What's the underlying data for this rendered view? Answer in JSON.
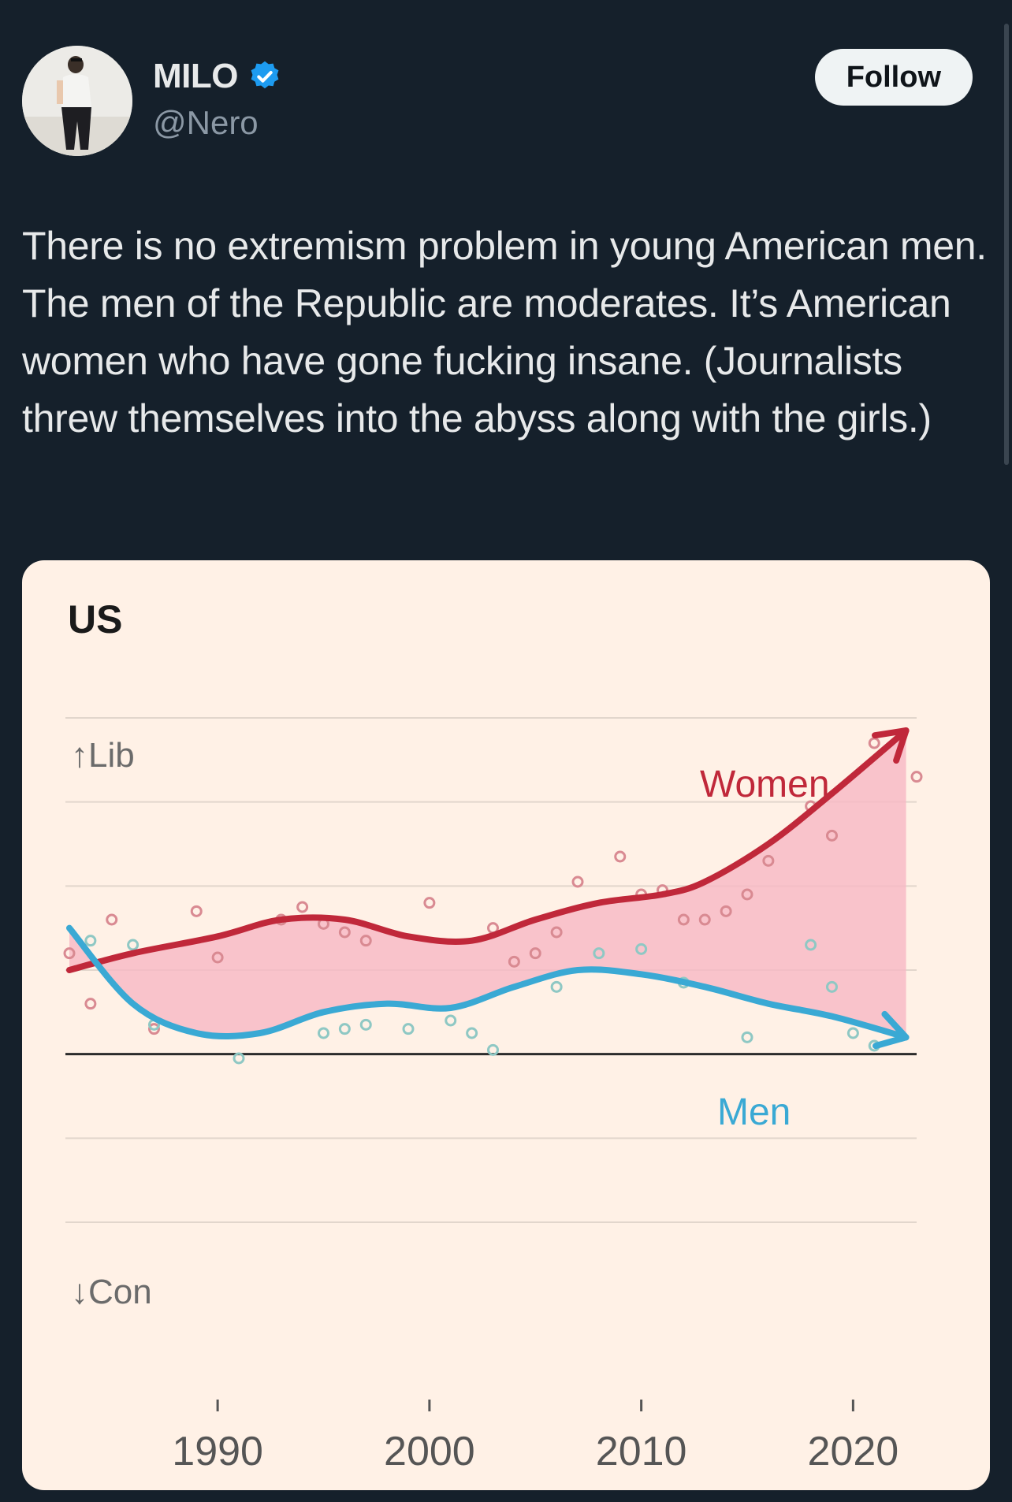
{
  "user": {
    "display_name": "MILO",
    "handle": "@Nero",
    "follow_label": "Follow",
    "verified": true,
    "accent": "#1d9bf0"
  },
  "tweet": {
    "text": "There is no extremism problem in young American men. The men of the Republic are moderates. It’s American women who have gone fucking insane. (Journalists threw themselves into the abyss along with the girls.)"
  },
  "chart_data": {
    "type": "line",
    "title": "US",
    "y_top_label": "↑Lib",
    "y_bottom_label": "↓Con",
    "xlim": [
      1983,
      2023
    ],
    "ylim": [
      -2,
      4
    ],
    "x_ticks": [
      1990,
      2000,
      2010,
      2020
    ],
    "x_tick_labels": [
      "1990",
      "2000",
      "2010",
      "2020"
    ],
    "grid": true,
    "zero_line": 0,
    "series": [
      {
        "name": "Women",
        "color": "#c0283a",
        "x": [
          1983,
          1986,
          1990,
          1993,
          1996,
          1999,
          2002,
          2005,
          2008,
          2011,
          2013,
          2016,
          2019,
          2022.5
        ],
        "y": [
          1.0,
          1.2,
          1.4,
          1.6,
          1.6,
          1.4,
          1.35,
          1.6,
          1.8,
          1.9,
          2.05,
          2.5,
          3.1,
          3.85
        ]
      },
      {
        "name": "Men",
        "color": "#3aa9d4",
        "x": [
          1983,
          1986,
          1989,
          1992,
          1995,
          1998,
          2001,
          2004,
          2007,
          2010,
          2013,
          2016,
          2019,
          2022.5
        ],
        "y": [
          1.5,
          0.6,
          0.25,
          0.25,
          0.5,
          0.6,
          0.55,
          0.8,
          1.0,
          0.95,
          0.8,
          0.6,
          0.45,
          0.2
        ]
      }
    ],
    "scatter_women": [
      [
        1983,
        1.2
      ],
      [
        1984,
        0.6
      ],
      [
        1985,
        1.6
      ],
      [
        1987,
        0.3
      ],
      [
        1989,
        1.7
      ],
      [
        1990,
        1.15
      ],
      [
        1993,
        1.6
      ],
      [
        1994,
        1.75
      ],
      [
        1995,
        1.55
      ],
      [
        1996,
        1.45
      ],
      [
        1997,
        1.35
      ],
      [
        2000,
        1.8
      ],
      [
        2003,
        1.5
      ],
      [
        2004,
        1.1
      ],
      [
        2005,
        1.2
      ],
      [
        2006,
        1.45
      ],
      [
        2007,
        2.05
      ],
      [
        2009,
        2.35
      ],
      [
        2010,
        1.9
      ],
      [
        2011,
        1.95
      ],
      [
        2012,
        1.6
      ],
      [
        2013,
        1.6
      ],
      [
        2014,
        1.7
      ],
      [
        2015,
        1.9
      ],
      [
        2016,
        2.3
      ],
      [
        2018,
        2.95
      ],
      [
        2019,
        2.6
      ],
      [
        2021,
        3.7
      ],
      [
        2023,
        3.3
      ]
    ],
    "scatter_men": [
      [
        1984,
        1.35
      ],
      [
        1986,
        1.3
      ],
      [
        1987,
        0.35
      ],
      [
        1991,
        -0.05
      ],
      [
        1995,
        0.25
      ],
      [
        1996,
        0.3
      ],
      [
        1997,
        0.35
      ],
      [
        1999,
        0.3
      ],
      [
        2001,
        0.4
      ],
      [
        2002,
        0.25
      ],
      [
        2003,
        0.05
      ],
      [
        2006,
        0.8
      ],
      [
        2008,
        1.2
      ],
      [
        2010,
        1.25
      ],
      [
        2012,
        0.85
      ],
      [
        2015,
        0.2
      ],
      [
        2018,
        1.3
      ],
      [
        2019,
        0.8
      ],
      [
        2020,
        0.25
      ],
      [
        2021,
        0.1
      ]
    ]
  }
}
